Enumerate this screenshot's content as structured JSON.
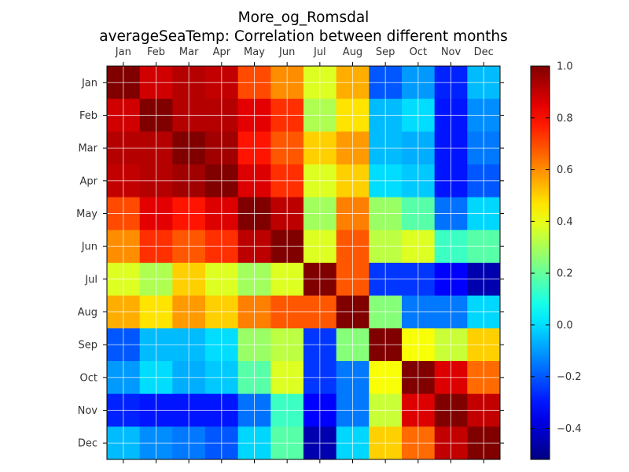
{
  "chart_data": {
    "type": "heatmap",
    "title": [
      "More_og_Romsdal",
      "averageSeaTemp: Correlation between different months"
    ],
    "xlabels": [
      "Jan",
      "Feb",
      "Mar",
      "Apr",
      "May",
      "Jun",
      "Jul",
      "Aug",
      "Sep",
      "Oct",
      "Nov",
      "Dec"
    ],
    "ylabels": [
      "Jan",
      "Feb",
      "Mar",
      "Apr",
      "May",
      "Jun",
      "Jul",
      "Aug",
      "Sep",
      "Oct",
      "Nov",
      "Dec"
    ],
    "colormap": "jet",
    "vmin": -0.52,
    "vmax": 1.0,
    "colorbar_ticks": [
      1.0,
      0.8,
      0.6,
      0.4,
      0.2,
      0.0,
      -0.2,
      -0.4
    ],
    "colorbar_tick_labels": [
      "1.0",
      "0.8",
      "0.6",
      "0.4",
      "0.2",
      "0.0",
      "−0.2",
      "−0.4"
    ],
    "grid": true,
    "values": [
      [
        1.0,
        0.88,
        0.92,
        0.9,
        0.7,
        0.6,
        0.38,
        0.55,
        -0.2,
        -0.1,
        -0.28,
        -0.05
      ],
      [
        0.88,
        1.0,
        0.92,
        0.92,
        0.85,
        0.74,
        0.31,
        0.47,
        -0.05,
        0.0,
        -0.3,
        -0.12
      ],
      [
        0.92,
        0.92,
        1.0,
        0.95,
        0.78,
        0.68,
        0.5,
        0.58,
        -0.05,
        -0.07,
        -0.3,
        -0.15
      ],
      [
        0.9,
        0.92,
        0.95,
        1.0,
        0.86,
        0.74,
        0.38,
        0.5,
        0.0,
        -0.03,
        -0.3,
        -0.2
      ],
      [
        0.7,
        0.85,
        0.78,
        0.86,
        1.0,
        0.91,
        0.29,
        0.62,
        0.28,
        0.18,
        -0.16,
        -0.01
      ],
      [
        0.6,
        0.74,
        0.68,
        0.74,
        0.91,
        1.0,
        0.38,
        0.68,
        0.33,
        0.38,
        0.14,
        0.18
      ],
      [
        0.38,
        0.31,
        0.5,
        0.38,
        0.29,
        0.38,
        1.0,
        0.68,
        -0.25,
        -0.25,
        -0.33,
        -0.45
      ],
      [
        0.55,
        0.47,
        0.58,
        0.5,
        0.62,
        0.68,
        0.68,
        1.0,
        0.25,
        -0.15,
        -0.15,
        -0.01
      ],
      [
        -0.2,
        -0.05,
        -0.05,
        0.0,
        0.28,
        0.33,
        -0.25,
        0.25,
        1.0,
        0.42,
        0.35,
        0.5
      ],
      [
        -0.1,
        0.0,
        -0.07,
        -0.03,
        0.18,
        0.38,
        -0.25,
        -0.15,
        0.42,
        1.0,
        0.86,
        0.65
      ],
      [
        -0.28,
        -0.3,
        -0.3,
        -0.3,
        -0.16,
        0.14,
        -0.33,
        -0.15,
        0.35,
        0.86,
        1.0,
        0.9
      ],
      [
        -0.05,
        -0.12,
        -0.15,
        -0.2,
        -0.01,
        0.18,
        -0.45,
        -0.01,
        0.5,
        0.65,
        0.9,
        1.0
      ]
    ]
  }
}
